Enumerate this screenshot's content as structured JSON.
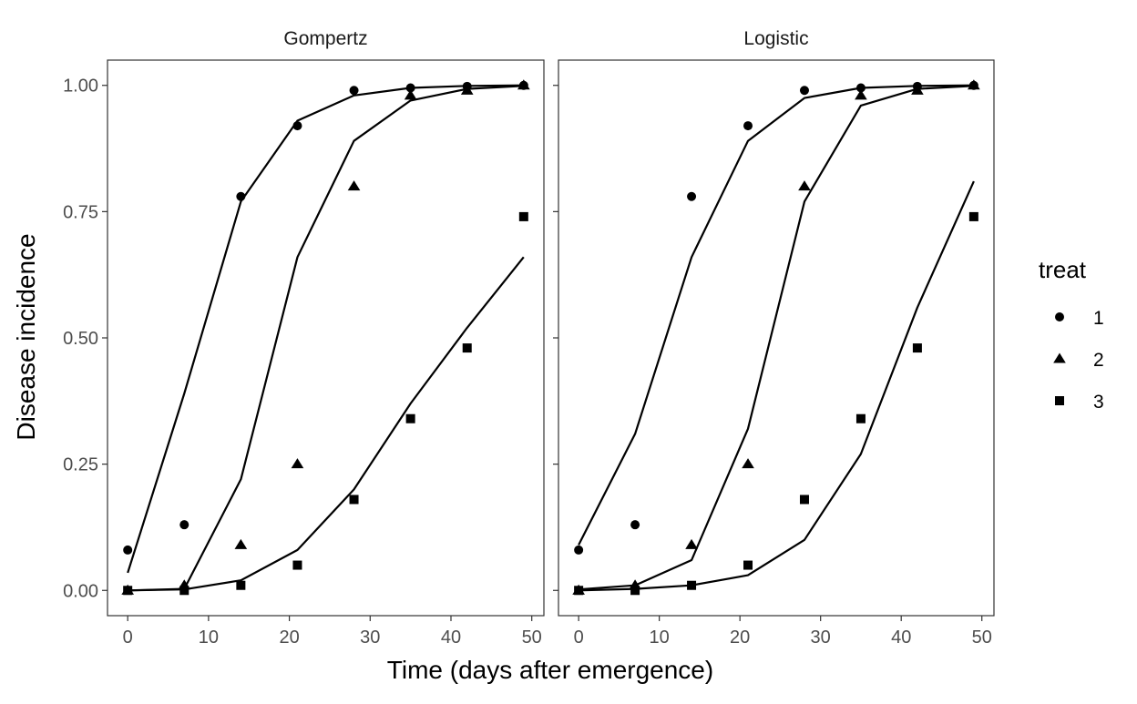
{
  "chart_data": {
    "type": "scatter",
    "xlabel": "Time (days after emergence)",
    "ylabel": "Disease incidence",
    "xlim": [
      -2.5,
      51.5
    ],
    "ylim": [
      -0.05,
      1.05
    ],
    "x_ticks": [
      0,
      10,
      20,
      30,
      40,
      50
    ],
    "x_tick_labels": [
      "0",
      "10",
      "20",
      "30",
      "40",
      "50"
    ],
    "y_ticks": [
      0,
      0.25,
      0.5,
      0.75,
      1.0
    ],
    "y_tick_labels": [
      "0.00",
      "0.25",
      "0.50",
      "0.75",
      "1.00"
    ],
    "grid": false,
    "legend": {
      "title": "treat",
      "position": "right",
      "entries": [
        {
          "label": "1",
          "shape": "circle"
        },
        {
          "label": "2",
          "shape": "triangle"
        },
        {
          "label": "3",
          "shape": "square"
        }
      ]
    },
    "panels": [
      {
        "title": "Gompertz",
        "series": [
          {
            "name": "1",
            "shape": "circle",
            "points": {
              "x": [
                0,
                7,
                14,
                21,
                28,
                35,
                42,
                49
              ],
              "y": [
                0.08,
                0.13,
                0.78,
                0.92,
                0.99,
                0.995,
                0.998,
                1.0
              ]
            },
            "fit": {
              "x": [
                0,
                7,
                14,
                21,
                28,
                35,
                42,
                49
              ],
              "y": [
                0.035,
                0.39,
                0.77,
                0.93,
                0.98,
                0.995,
                0.999,
                1.0
              ]
            }
          },
          {
            "name": "2",
            "shape": "triangle",
            "points": {
              "x": [
                0,
                7,
                14,
                21,
                28,
                35,
                42,
                49
              ],
              "y": [
                0.0,
                0.01,
                0.09,
                0.25,
                0.8,
                0.98,
                0.99,
                1.0
              ]
            },
            "fit": {
              "x": [
                0,
                7,
                14,
                21,
                28,
                35,
                42,
                49
              ],
              "y": [
                0.0,
                0.003,
                0.22,
                0.66,
                0.89,
                0.97,
                0.993,
                0.999
              ]
            }
          },
          {
            "name": "3",
            "shape": "square",
            "points": {
              "x": [
                0,
                7,
                14,
                21,
                28,
                35,
                42,
                49
              ],
              "y": [
                0.0,
                0.0,
                0.01,
                0.05,
                0.18,
                0.34,
                0.48,
                0.74
              ]
            },
            "fit": {
              "x": [
                0,
                7,
                14,
                21,
                28,
                35,
                42,
                49
              ],
              "y": [
                0.0,
                0.002,
                0.02,
                0.08,
                0.2,
                0.37,
                0.52,
                0.66
              ]
            }
          }
        ]
      },
      {
        "title": "Logistic",
        "series": [
          {
            "name": "1",
            "shape": "circle",
            "points": {
              "x": [
                0,
                7,
                14,
                21,
                28,
                35,
                42,
                49
              ],
              "y": [
                0.08,
                0.13,
                0.78,
                0.92,
                0.99,
                0.995,
                0.998,
                1.0
              ]
            },
            "fit": {
              "x": [
                0,
                7,
                14,
                21,
                28,
                35,
                42,
                49
              ],
              "y": [
                0.09,
                0.31,
                0.66,
                0.89,
                0.975,
                0.995,
                0.999,
                1.0
              ]
            }
          },
          {
            "name": "2",
            "shape": "triangle",
            "points": {
              "x": [
                0,
                7,
                14,
                21,
                28,
                35,
                42,
                49
              ],
              "y": [
                0.0,
                0.01,
                0.09,
                0.25,
                0.8,
                0.98,
                0.99,
                1.0
              ]
            },
            "fit": {
              "x": [
                0,
                7,
                14,
                21,
                28,
                35,
                42,
                49
              ],
              "y": [
                0.002,
                0.01,
                0.06,
                0.32,
                0.77,
                0.96,
                0.993,
                0.999
              ]
            }
          },
          {
            "name": "3",
            "shape": "square",
            "points": {
              "x": [
                0,
                7,
                14,
                21,
                28,
                35,
                42,
                49
              ],
              "y": [
                0.0,
                0.0,
                0.01,
                0.05,
                0.18,
                0.34,
                0.48,
                0.74
              ]
            },
            "fit": {
              "x": [
                0,
                7,
                14,
                21,
                28,
                35,
                42,
                49
              ],
              "y": [
                0.0,
                0.003,
                0.01,
                0.03,
                0.1,
                0.27,
                0.56,
                0.81
              ]
            }
          }
        ]
      }
    ]
  }
}
